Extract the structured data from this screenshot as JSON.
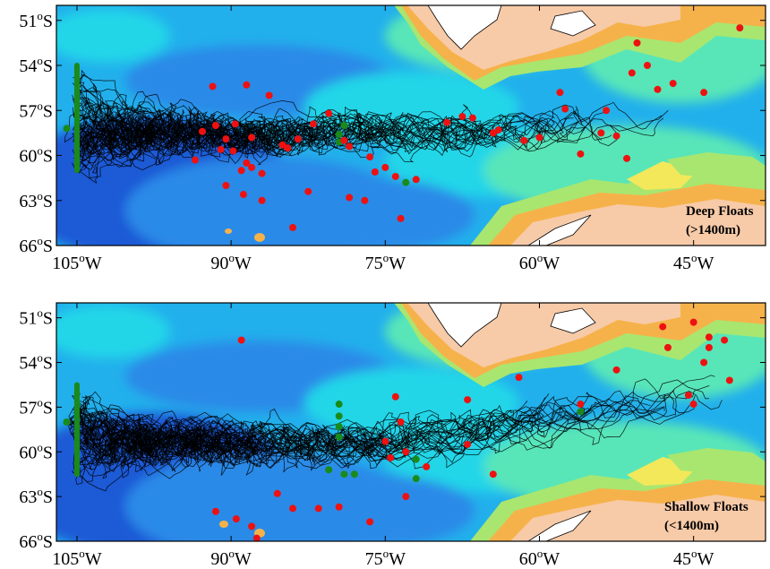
{
  "chart_data": [
    {
      "type": "map",
      "panel_label_line1": "Deep Floats",
      "panel_label_line2": "(>1400m)",
      "lon_range": [
        -107,
        -38
      ],
      "lat_range": [
        -66,
        -50
      ],
      "x_ticks": [
        {
          "lon": -105,
          "num": "105",
          "deg": "o",
          "hemi": "W"
        },
        {
          "lon": -90,
          "num": "90",
          "deg": "o",
          "hemi": "W"
        },
        {
          "lon": -75,
          "num": "75",
          "deg": "o",
          "hemi": "W"
        },
        {
          "lon": -60,
          "num": "60",
          "deg": "o",
          "hemi": "W"
        },
        {
          "lon": -45,
          "num": "45",
          "deg": "o",
          "hemi": "W"
        }
      ],
      "y_ticks": [
        {
          "lat": -51,
          "num": "51",
          "deg": "o",
          "hemi": "S"
        },
        {
          "lat": -54,
          "num": "54",
          "deg": "o",
          "hemi": "S"
        },
        {
          "lat": -57,
          "num": "57",
          "deg": "o",
          "hemi": "S"
        },
        {
          "lat": -60,
          "num": "60",
          "deg": "o",
          "hemi": "S"
        },
        {
          "lat": -63,
          "num": "63",
          "deg": "o",
          "hemi": "S"
        },
        {
          "lat": -66,
          "num": "66",
          "deg": "o",
          "hemi": "S"
        }
      ],
      "deployment_line": {
        "lon": -105,
        "lat_from": -61.0,
        "lat_to": -54.0,
        "color": "#1a8a1a"
      },
      "green_points": [
        [
          -106,
          -58.2
        ],
        [
          -79.5,
          -58.6
        ],
        [
          -79.5,
          -59.1
        ],
        [
          -73,
          -61.8
        ],
        [
          -79,
          -58.0
        ]
      ],
      "red_points": [
        [
          -91.8,
          -55.4
        ],
        [
          -88.5,
          -55.3
        ],
        [
          -86.3,
          -56.0
        ],
        [
          -92.8,
          -58.4
        ],
        [
          -91.5,
          -58.0
        ],
        [
          -90.5,
          -58.9
        ],
        [
          -91.0,
          -59.6
        ],
        [
          -93.5,
          -60.3
        ],
        [
          -89.6,
          -57.9
        ],
        [
          -88.0,
          -58.8
        ],
        [
          -89.8,
          -59.7
        ],
        [
          -89.0,
          -61.0
        ],
        [
          -88.5,
          -60.5
        ],
        [
          -88.0,
          -60.8
        ],
        [
          -87.0,
          -61.2
        ],
        [
          -90.5,
          -62.0
        ],
        [
          -88.8,
          -62.6
        ],
        [
          -87.0,
          -63.0
        ],
        [
          -83.5,
          -58.9
        ],
        [
          -85.0,
          -59.3
        ],
        [
          -84.5,
          -59.5
        ],
        [
          -82.0,
          -57.9
        ],
        [
          -80.5,
          -57.2
        ],
        [
          -82.5,
          -62.4
        ],
        [
          -84.0,
          -64.8
        ],
        [
          -79.0,
          -59.0
        ],
        [
          -78.5,
          -59.4
        ],
        [
          -76.5,
          -60.1
        ],
        [
          -75.0,
          -60.8
        ],
        [
          -74.0,
          -61.4
        ],
        [
          -72.0,
          -61.6
        ],
        [
          -76.0,
          -61.1
        ],
        [
          -78.5,
          -62.8
        ],
        [
          -77.0,
          -63.0
        ],
        [
          -73.5,
          -64.2
        ],
        [
          -69.0,
          -57.8
        ],
        [
          -67.5,
          -57.4
        ],
        [
          -66.5,
          -57.5
        ],
        [
          -64.5,
          -58.5
        ],
        [
          -64.0,
          -58.3
        ],
        [
          -61.5,
          -59.0
        ],
        [
          -60.0,
          -58.8
        ],
        [
          -58.0,
          -55.8
        ],
        [
          -57.5,
          -56.9
        ],
        [
          -56.0,
          -59.9
        ],
        [
          -54.0,
          -58.5
        ],
        [
          -53.5,
          -57.0
        ],
        [
          -52.5,
          -58.7
        ],
        [
          -51.5,
          -60.2
        ],
        [
          -48.5,
          -55.6
        ],
        [
          -47.0,
          -55.2
        ],
        [
          -51.0,
          -54.5
        ],
        [
          -50.5,
          -52.5
        ],
        [
          -49.5,
          -54.0
        ],
        [
          -44.0,
          -55.8
        ],
        [
          -40.5,
          -51.5
        ]
      ],
      "color_scale": [
        "#1a5ad6",
        "#2a8ae8",
        "#22b0ec",
        "#24d6e8",
        "#58e6b8",
        "#a8e670",
        "#f2e85a",
        "#f6b24a",
        "#f7caa8",
        "#ffffff"
      ]
    },
    {
      "type": "map",
      "panel_label_line1": "Shallow Floats",
      "panel_label_line2": "(<1400m)",
      "lon_range": [
        -107,
        -38
      ],
      "lat_range": [
        -66,
        -50
      ],
      "x_ticks": [
        {
          "lon": -105,
          "num": "105",
          "deg": "o",
          "hemi": "W"
        },
        {
          "lon": -90,
          "num": "90",
          "deg": "o",
          "hemi": "W"
        },
        {
          "lon": -75,
          "num": "75",
          "deg": "o",
          "hemi": "W"
        },
        {
          "lon": -60,
          "num": "60",
          "deg": "o",
          "hemi": "W"
        },
        {
          "lon": -45,
          "num": "45",
          "deg": "o",
          "hemi": "W"
        }
      ],
      "y_ticks": [
        {
          "lat": -51,
          "num": "51",
          "deg": "o",
          "hemi": "S"
        },
        {
          "lat": -54,
          "num": "54",
          "deg": "o",
          "hemi": "S"
        },
        {
          "lat": -57,
          "num": "57",
          "deg": "o",
          "hemi": "S"
        },
        {
          "lat": -60,
          "num": "60",
          "deg": "o",
          "hemi": "S"
        },
        {
          "lat": -63,
          "num": "63",
          "deg": "o",
          "hemi": "S"
        },
        {
          "lat": -66,
          "num": "66",
          "deg": "o",
          "hemi": "S"
        }
      ],
      "deployment_line": {
        "lon": -105,
        "lat_from": -61.5,
        "lat_to": -55.5,
        "color": "#1a8a1a"
      },
      "green_points": [
        [
          -106,
          -58.0
        ],
        [
          -79.5,
          -56.8
        ],
        [
          -79.5,
          -57.6
        ],
        [
          -79.5,
          -58.3
        ],
        [
          -79.5,
          -59.0
        ],
        [
          -80.5,
          -61.2
        ],
        [
          -79.0,
          -61.5
        ],
        [
          -78.0,
          -61.5
        ],
        [
          -72.0,
          -61.8
        ],
        [
          -72.0,
          -60.5
        ],
        [
          -56.0,
          -57.3
        ]
      ],
      "red_points": [
        [
          -89.0,
          -52.5
        ],
        [
          -91.5,
          -64.0
        ],
        [
          -89.5,
          -64.5
        ],
        [
          -88.0,
          -65.0
        ],
        [
          -87.5,
          -65.8
        ],
        [
          -85.5,
          -62.8
        ],
        [
          -84.0,
          -63.8
        ],
        [
          -81.5,
          -63.8
        ],
        [
          -79.5,
          -63.7
        ],
        [
          -76.5,
          -64.7
        ],
        [
          -73.0,
          -63.0
        ],
        [
          -71.0,
          -61.0
        ],
        [
          -73.0,
          -60.0
        ],
        [
          -74.5,
          -60.4
        ],
        [
          -75.0,
          -59.3
        ],
        [
          -73.5,
          -58.0
        ],
        [
          -74.0,
          -56.3
        ],
        [
          -67.0,
          -56.5
        ],
        [
          -67.0,
          -59.5
        ],
        [
          -64.5,
          -61.5
        ],
        [
          -62.0,
          -55.0
        ],
        [
          -56.0,
          -56.8
        ],
        [
          -52.5,
          -54.5
        ],
        [
          -48.0,
          -51.6
        ],
        [
          -45.0,
          -51.3
        ],
        [
          -43.5,
          -52.3
        ],
        [
          -42.0,
          -52.5
        ],
        [
          -43.5,
          -53.0
        ],
        [
          -44.0,
          -54.0
        ],
        [
          -45.5,
          -56.2
        ],
        [
          -45.0,
          -56.8
        ],
        [
          -41.5,
          -55.2
        ],
        [
          -47.5,
          -53.0
        ]
      ],
      "color_scale": [
        "#1a5ad6",
        "#2a8ae8",
        "#22b0ec",
        "#24d6e8",
        "#58e6b8",
        "#a8e670",
        "#f2e85a",
        "#f6b24a",
        "#f7caa8",
        "#ffffff"
      ]
    }
  ]
}
